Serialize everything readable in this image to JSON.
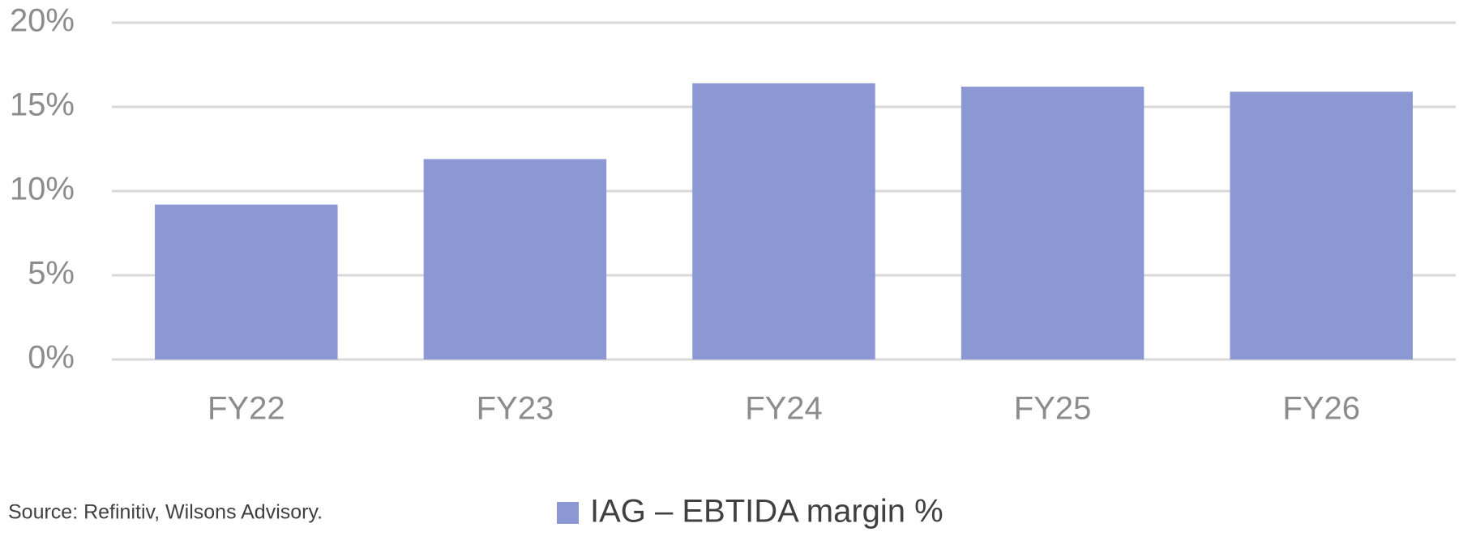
{
  "chart_data": {
    "type": "bar",
    "categories": [
      "FY22",
      "FY23",
      "FY24",
      "FY25",
      "FY26"
    ],
    "series": [
      {
        "name": "IAG – EBTIDA margin %",
        "color": "#8b98d4",
        "values": [
          9.2,
          11.9,
          16.4,
          16.2,
          15.9
        ]
      }
    ],
    "ylim": [
      0,
      20
    ],
    "yticks": [
      {
        "value": 0,
        "label": "0%"
      },
      {
        "value": 5,
        "label": "5%"
      },
      {
        "value": 10,
        "label": "10%"
      },
      {
        "value": 15,
        "label": "15%"
      },
      {
        "value": 20,
        "label": "20%"
      }
    ],
    "grid": true,
    "source": "Source: Refinitiv, Wilsons Advisory."
  }
}
